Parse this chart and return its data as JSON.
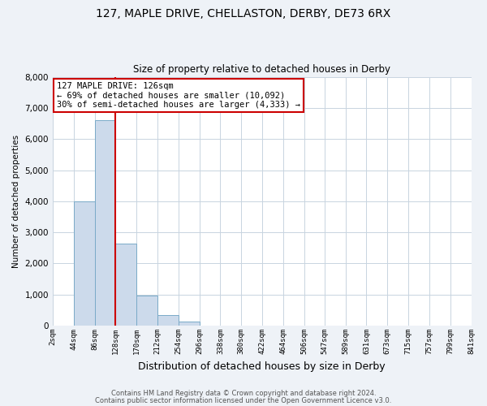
{
  "title": "127, MAPLE DRIVE, CHELLASTON, DERBY, DE73 6RX",
  "subtitle": "Size of property relative to detached houses in Derby",
  "xlabel": "Distribution of detached houses by size in Derby",
  "ylabel": "Number of detached properties",
  "bar_color": "#ccdaeb",
  "bar_edge_color": "#7aaac8",
  "background_color": "#eef2f7",
  "plot_bg_color": "#ffffff",
  "grid_color": "#c8d4e0",
  "vline_x": 128,
  "vline_color": "#cc0000",
  "annotation_box_color": "#cc0000",
  "annotation_line1": "127 MAPLE DRIVE: 126sqm",
  "annotation_line2": "← 69% of detached houses are smaller (10,092)",
  "annotation_line3": "30% of semi-detached houses are larger (4,333) →",
  "bin_edges": [
    2,
    44,
    86,
    128,
    170,
    212,
    254,
    296,
    338,
    380,
    422,
    464,
    506,
    547,
    589,
    631,
    673,
    715,
    757,
    799,
    841
  ],
  "bin_heights": [
    4,
    3985,
    6600,
    2630,
    960,
    330,
    130,
    0,
    0,
    0,
    0,
    0,
    0,
    0,
    0,
    0,
    0,
    0,
    0,
    0
  ],
  "ylim": [
    0,
    8000
  ],
  "yticks": [
    0,
    1000,
    2000,
    3000,
    4000,
    5000,
    6000,
    7000,
    8000
  ],
  "footer1": "Contains HM Land Registry data © Crown copyright and database right 2024.",
  "footer2": "Contains public sector information licensed under the Open Government Licence v3.0."
}
